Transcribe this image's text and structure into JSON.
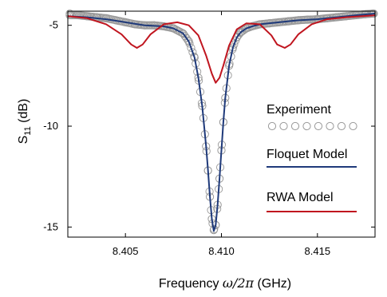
{
  "chart_data": {
    "type": "line",
    "xlabel_text": "Frequency ",
    "xlabel_math": "ω/2π",
    "xlabel_unit": " (GHz)",
    "ylabel_main": "S",
    "ylabel_sub": "11",
    "ylabel_unit": " (dB)",
    "xlim": [
      8.402,
      8.418
    ],
    "ylim": [
      -15.5,
      -4.3
    ],
    "xticks": [
      8.405,
      8.41,
      8.415
    ],
    "xtick_labels": [
      "8.405",
      "8.410",
      "8.415"
    ],
    "yticks": [
      -5,
      -10,
      -15
    ],
    "ytick_labels": [
      "-5",
      "-10",
      "-15"
    ],
    "grid": false,
    "legend_position": "right",
    "series": [
      {
        "name": "Experiment",
        "style": "open-circle-markers",
        "color": "#9a9a9a",
        "x": [
          8.4021,
          8.4025,
          8.403,
          8.4035,
          8.404,
          8.4045,
          8.405,
          8.4055,
          8.406,
          8.4065,
          8.407,
          8.4075,
          8.408,
          8.4083,
          8.4086,
          8.4088,
          8.409,
          8.4092,
          8.4093,
          8.4094,
          8.4095,
          8.4096,
          8.4097,
          8.4098,
          8.4099,
          8.41,
          8.4101,
          8.4102,
          8.4104,
          8.4106,
          8.4108,
          8.411,
          8.4113,
          8.4116,
          8.412,
          8.4125,
          8.413,
          8.4135,
          8.414,
          8.4145,
          8.415,
          8.4155,
          8.416,
          8.4165,
          8.417,
          8.4175,
          8.4179
        ],
        "y": [
          -4.5,
          -4.5,
          -4.55,
          -4.6,
          -4.65,
          -4.75,
          -4.85,
          -4.95,
          -5.0,
          -5.0,
          -5.05,
          -5.15,
          -5.4,
          -5.8,
          -6.6,
          -7.6,
          -9.0,
          -11.0,
          -12.2,
          -13.5,
          -14.6,
          -15.15,
          -14.9,
          -13.9,
          -12.6,
          -11.2,
          -9.8,
          -8.6,
          -7.0,
          -6.1,
          -5.6,
          -5.35,
          -5.15,
          -5.05,
          -4.95,
          -4.9,
          -4.85,
          -4.8,
          -4.75,
          -4.72,
          -4.7,
          -4.65,
          -4.6,
          -4.55,
          -4.5,
          -4.45,
          -4.42
        ]
      },
      {
        "name": "Floquet Model",
        "style": "line",
        "color": "#1f3a7a",
        "x": [
          8.402,
          8.403,
          8.404,
          8.405,
          8.406,
          8.407,
          8.4075,
          8.408,
          8.4083,
          8.4086,
          8.4088,
          8.409,
          8.4092,
          8.4093,
          8.4094,
          8.4095,
          8.4096,
          8.4097,
          8.4098,
          8.4099,
          8.41,
          8.4101,
          8.4102,
          8.4104,
          8.4106,
          8.4108,
          8.411,
          8.4113,
          8.4116,
          8.412,
          8.413,
          8.414,
          8.415,
          8.416,
          8.417,
          8.418
        ],
        "y": [
          -4.55,
          -4.6,
          -4.7,
          -4.85,
          -5.0,
          -5.05,
          -5.15,
          -5.4,
          -5.8,
          -6.6,
          -7.6,
          -9.0,
          -11.0,
          -12.2,
          -13.5,
          -14.6,
          -15.2,
          -14.9,
          -13.9,
          -12.6,
          -11.2,
          -9.8,
          -8.6,
          -7.0,
          -6.1,
          -5.6,
          -5.35,
          -5.15,
          -5.05,
          -4.95,
          -4.85,
          -4.75,
          -4.7,
          -4.6,
          -4.5,
          -4.42
        ]
      },
      {
        "name": "RWA Model",
        "style": "line",
        "color": "#c0151f",
        "x": [
          8.402,
          8.403,
          8.404,
          8.4048,
          8.4053,
          8.4056,
          8.4059,
          8.4063,
          8.407,
          8.4077,
          8.4083,
          8.4088,
          8.4092,
          8.4095,
          8.4097,
          8.4099,
          8.4101,
          8.4104,
          8.4108,
          8.4113,
          8.412,
          8.4126,
          8.4129,
          8.4133,
          8.4136,
          8.414,
          8.4147,
          8.4155,
          8.4165,
          8.418
        ],
        "y": [
          -4.55,
          -4.65,
          -4.95,
          -5.45,
          -5.95,
          -6.12,
          -5.95,
          -5.45,
          -4.95,
          -4.85,
          -5.0,
          -5.5,
          -6.5,
          -7.4,
          -7.85,
          -7.6,
          -7.0,
          -6.0,
          -5.2,
          -4.9,
          -4.95,
          -5.5,
          -5.95,
          -6.12,
          -5.95,
          -5.45,
          -4.95,
          -4.7,
          -4.6,
          -4.5
        ]
      }
    ]
  }
}
